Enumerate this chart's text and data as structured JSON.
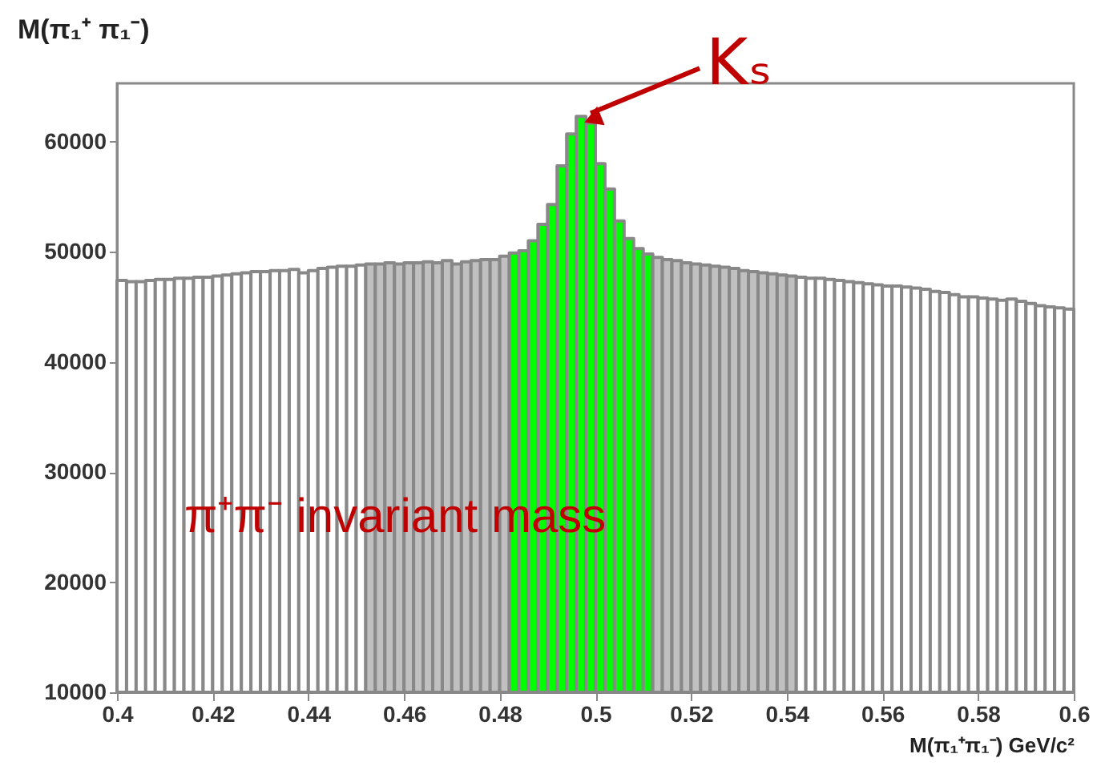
{
  "chart_data": {
    "type": "histogram",
    "title": "M(π₁⁺ π₁⁻)",
    "xlabel": "M(π₁⁺π₁⁻)     GeV/c²",
    "bins": [
      0.4,
      0.402,
      0.404,
      0.406,
      0.408,
      0.41,
      0.412,
      0.414,
      0.416,
      0.418,
      0.42,
      0.422,
      0.424,
      0.426,
      0.428,
      0.43,
      0.432,
      0.434,
      0.436,
      0.438,
      0.44,
      0.442,
      0.444,
      0.446,
      0.448,
      0.45,
      0.452,
      0.454,
      0.456,
      0.458,
      0.46,
      0.462,
      0.464,
      0.466,
      0.468,
      0.47,
      0.472,
      0.474,
      0.476,
      0.478,
      0.48,
      0.482,
      0.484,
      0.486,
      0.488,
      0.49,
      0.492,
      0.494,
      0.496,
      0.498,
      0.5,
      0.502,
      0.504,
      0.506,
      0.508,
      0.51,
      0.512,
      0.514,
      0.516,
      0.518,
      0.52,
      0.522,
      0.524,
      0.526,
      0.528,
      0.53,
      0.532,
      0.534,
      0.536,
      0.538,
      0.54,
      0.542,
      0.544,
      0.546,
      0.548,
      0.55,
      0.552,
      0.554,
      0.556,
      0.558,
      0.56,
      0.562,
      0.564,
      0.566,
      0.568,
      0.57,
      0.572,
      0.574,
      0.576,
      0.578,
      0.58,
      0.582,
      0.584,
      0.586,
      0.588,
      0.59,
      0.592,
      0.594,
      0.596,
      0.598,
      0.6
    ],
    "values": [
      47400,
      47300,
      47300,
      47400,
      47500,
      47500,
      47600,
      47600,
      47700,
      47700,
      47800,
      47900,
      48000,
      48100,
      48200,
      48200,
      48300,
      48300,
      48400,
      48100,
      48300,
      48500,
      48600,
      48700,
      48700,
      48800,
      48900,
      48900,
      49000,
      48900,
      49000,
      49000,
      49100,
      49000,
      49200,
      48900,
      49100,
      49200,
      49300,
      49300,
      49600,
      49900,
      50100,
      51000,
      52500,
      54300,
      57800,
      60700,
      62300,
      61700,
      58000,
      55700,
      52800,
      51200,
      50300,
      49800,
      49500,
      49300,
      49200,
      49000,
      48900,
      48800,
      48700,
      48600,
      48500,
      48300,
      48200,
      48100,
      48000,
      47900,
      47800,
      47700,
      47600,
      47600,
      47500,
      47400,
      47300,
      47200,
      47100,
      47000,
      46900,
      46900,
      46800,
      46700,
      46600,
      46400,
      46300,
      46100,
      45900,
      45900,
      45800,
      45700,
      45600,
      45700,
      45500,
      45300,
      45100,
      45000,
      44900,
      44800
    ],
    "colors": [
      "#ffffff",
      "#ffffff",
      "#ffffff",
      "#ffffff",
      "#ffffff",
      "#ffffff",
      "#ffffff",
      "#ffffff",
      "#ffffff",
      "#ffffff",
      "#ffffff",
      "#ffffff",
      "#ffffff",
      "#ffffff",
      "#ffffff",
      "#ffffff",
      "#ffffff",
      "#ffffff",
      "#ffffff",
      "#ffffff",
      "#ffffff",
      "#ffffff",
      "#ffffff",
      "#ffffff",
      "#ffffff",
      "#ffffff",
      "#c0c0c0",
      "#c0c0c0",
      "#c0c0c0",
      "#c0c0c0",
      "#c0c0c0",
      "#c0c0c0",
      "#c0c0c0",
      "#c0c0c0",
      "#c0c0c0",
      "#c0c0c0",
      "#c0c0c0",
      "#c0c0c0",
      "#c0c0c0",
      "#c0c0c0",
      "#c0c0c0",
      "#00ff00",
      "#00ff00",
      "#00ff00",
      "#00ff00",
      "#00ff00",
      "#00ff00",
      "#00ff00",
      "#00ff00",
      "#00ff00",
      "#00ff00",
      "#00ff00",
      "#00ff00",
      "#00ff00",
      "#00ff00",
      "#00ff00",
      "#c0c0c0",
      "#c0c0c0",
      "#c0c0c0",
      "#c0c0c0",
      "#c0c0c0",
      "#c0c0c0",
      "#c0c0c0",
      "#c0c0c0",
      "#c0c0c0",
      "#c0c0c0",
      "#c0c0c0",
      "#c0c0c0",
      "#c0c0c0",
      "#c0c0c0",
      "#c0c0c0",
      "#ffffff",
      "#ffffff",
      "#ffffff",
      "#ffffff",
      "#ffffff",
      "#ffffff",
      "#ffffff",
      "#ffffff",
      "#ffffff",
      "#ffffff",
      "#ffffff",
      "#ffffff",
      "#ffffff",
      "#ffffff",
      "#ffffff",
      "#ffffff",
      "#ffffff",
      "#ffffff",
      "#ffffff",
      "#ffffff",
      "#ffffff",
      "#ffffff",
      "#ffffff",
      "#ffffff",
      "#ffffff",
      "#ffffff",
      "#ffffff",
      "#ffffff",
      "#ffffff"
    ],
    "color": "#888888",
    "xlim": [
      0.4,
      0.6
    ],
    "xticks": [
      0.4,
      0.42,
      0.44,
      0.46,
      0.48,
      0.5,
      0.52,
      0.54,
      0.56,
      0.58,
      0.6
    ],
    "ylim": [
      10000,
      65300
    ],
    "yticks": [
      10000,
      20000,
      30000,
      40000,
      50000,
      60000
    ],
    "annotations": [
      {
        "text": "Kₛ",
        "x": 0.497,
        "y": 62300
      },
      "π⁺π⁻ invariant mass"
    ]
  }
}
